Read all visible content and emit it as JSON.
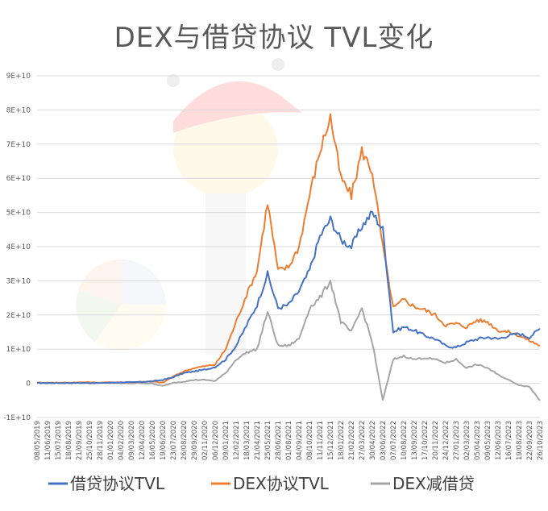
{
  "chart_data": {
    "type": "line",
    "title": "DEX与借贷协议 TVL变化",
    "xlabel": "",
    "ylabel": "",
    "ylim": [
      -10000000000,
      90000000000
    ],
    "yticks": [
      -10000000000,
      0,
      10000000000,
      20000000000,
      30000000000,
      40000000000,
      50000000000,
      60000000000,
      70000000000,
      80000000000,
      90000000000
    ],
    "ytick_labels": [
      "-1E+10",
      "0",
      "1E+10",
      "2E+10",
      "3E+10",
      "4E+10",
      "5E+10",
      "6E+10",
      "7E+10",
      "8E+10",
      "9E+10"
    ],
    "grid": true,
    "legend_position": "bottom",
    "x": [
      "08/05/2019",
      "11/06/2019",
      "15/07/2019",
      "18/08/2019",
      "21/09/2019",
      "25/10/2019",
      "28/11/2019",
      "01/01/2020",
      "04/02/2020",
      "09/03/2020",
      "12/04/2020",
      "16/05/2020",
      "19/06/2020",
      "23/07/2020",
      "26/08/2020",
      "29/09/2020",
      "02/11/2020",
      "06/12/2020",
      "09/01/2021",
      "12/02/2021",
      "18/03/2021",
      "21/04/2021",
      "25/05/2021",
      "28/06/2021",
      "01/08/2021",
      "04/09/2021",
      "08/10/2021",
      "11/11/2021",
      "15/12/2021",
      "18/01/2022",
      "21/02/2022",
      "27/03/2022",
      "30/04/2022",
      "03/06/2022",
      "07/07/2022",
      "10/08/2022",
      "13/09/2022",
      "17/10/2022",
      "20/11/2022",
      "24/12/2022",
      "27/01/2023",
      "02/03/2023",
      "05/04/2023",
      "09/05/2023",
      "12/06/2023",
      "16/07/2023",
      "19/08/2023",
      "22/09/2023",
      "26/10/2023"
    ],
    "series": [
      {
        "name": "借贷协议TVL",
        "color": "#4472c4",
        "values": [
          100000000.0,
          100000000.0,
          100000000.0,
          100000000.0,
          100000000.0,
          100000000.0,
          100000000.0,
          200000000.0,
          300000000.0,
          300000000.0,
          400000000.0,
          600000000.0,
          1000000000.0,
          1800000000.0,
          3000000000.0,
          3500000000.0,
          4000000000.0,
          4800000000.0,
          7000000000.0,
          11000000000.0,
          17000000000.0,
          23000000000.0,
          32000000000.0,
          22000000000.0,
          23000000000.0,
          27000000000.0,
          33000000000.0,
          43000000000.0,
          48000000000.0,
          42000000000.0,
          40000000000.0,
          46000000000.0,
          50000000000.0,
          45000000000.0,
          15000000000.0,
          16500000000.0,
          15500000000.0,
          14000000000.0,
          13000000000.0,
          11000000000.0,
          10500000000.0,
          12000000000.0,
          13000000000.0,
          13500000000.0,
          13000000000.0,
          14000000000.0,
          14500000000.0,
          13500000000.0,
          16000000000.0
        ]
      },
      {
        "name": "DEX协议TVL",
        "color": "#ed7d31",
        "values": [
          200000000.0,
          200000000.0,
          200000000.0,
          200000000.0,
          300000000.0,
          300000000.0,
          200000000.0,
          300000000.0,
          300000000.0,
          300000000.0,
          500000000.0,
          500000000.0,
          200000000.0,
          2000000000.0,
          3500000000.0,
          4500000000.0,
          5000000000.0,
          5500000000.0,
          10000000000.0,
          18000000000.0,
          26000000000.0,
          33000000000.0,
          53000000000.0,
          33000000000.0,
          34000000000.0,
          40000000000.0,
          55000000000.0,
          68000000000.0,
          78000000000.0,
          60000000000.0,
          55000000000.0,
          68000000000.0,
          62000000000.0,
          40000000000.0,
          22000000000.0,
          24500000000.0,
          22500000000.0,
          21500000000.0,
          20000000000.0,
          17000000000.0,
          17500000000.0,
          16500000000.0,
          18500000000.0,
          18000000000.0,
          15500000000.0,
          15000000000.0,
          14000000000.0,
          12500000000.0,
          11000000000.0
        ]
      },
      {
        "name": "DEX减借贷",
        "color": "#a5a5a5",
        "values": [
          100000000.0,
          100000000.0,
          100000000.0,
          100000000.0,
          200000000.0,
          200000000.0,
          100000000.0,
          100000000.0,
          0.0,
          0.0,
          100000000.0,
          -100000000.0,
          -800000000.0,
          200000000.0,
          500000000.0,
          1000000000.0,
          1000000000.0,
          700000000.0,
          3000000000.0,
          7000000000.0,
          9000000000.0,
          10000000000.0,
          21000000000.0,
          11000000000.0,
          11000000000.0,
          13000000000.0,
          22000000000.0,
          25000000000.0,
          30000000000.0,
          18000000000.0,
          15000000000.0,
          22000000000.0,
          12000000000.0,
          -5000000000.0,
          7000000000.0,
          8000000000.0,
          7000000000.0,
          7500000000.0,
          7000000000.0,
          6000000000.0,
          7000000000.0,
          4500000000.0,
          5500000000.0,
          4500000000.0,
          2500000000.0,
          1000000000.0,
          -500000000.0,
          -1000000000.0,
          -5000000000.0
        ]
      }
    ]
  },
  "watermark": {
    "description_color_pie": [
      "#f4b183",
      "#a9d18e",
      "#ffe699",
      "#b4c7e7"
    ]
  }
}
